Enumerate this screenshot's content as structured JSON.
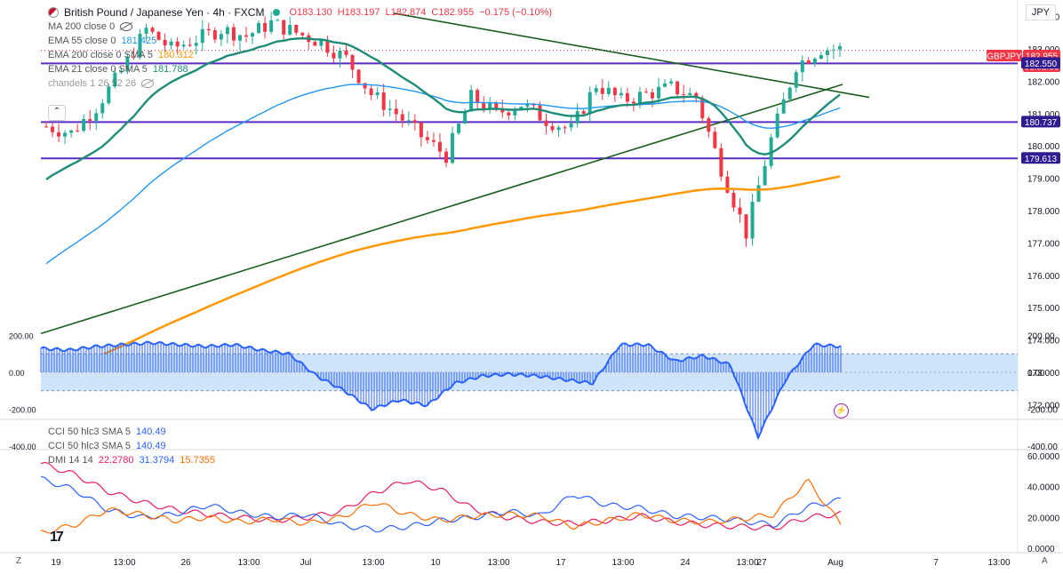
{
  "header": {
    "symbol_title": "British Pound / Japanese Yen · 4h · FXCM",
    "ohlc": {
      "o": "O183.130",
      "h": "H183.197",
      "l": "L182.874",
      "c": "C182.955",
      "chg": "−0.175 (−0.10%)"
    },
    "currency": "JPY"
  },
  "indicators": [
    {
      "name": "MA 200 close 0",
      "value": "",
      "color": "#555555"
    },
    {
      "name": "EMA 55 close 0",
      "value": "181.425",
      "color": "#2196f3"
    },
    {
      "name": "EMA 200 close 0 SMA 5",
      "value": "180.312",
      "color": "#ff9800"
    },
    {
      "name": "EMA 21 close 0 SMA 5",
      "value": "181.788",
      "color": "#1e8c78"
    },
    {
      "name": "chandels 1 26 52 26",
      "value": "",
      "color": "#aaaaaa"
    }
  ],
  "cci_labels": [
    {
      "name": "CCI 50 hlc3 SMA 5",
      "value": "140.49"
    },
    {
      "name": "CCI 50 hlc3 SMA 5",
      "value": "140.49"
    }
  ],
  "dmi_label": {
    "name": "DMI 14 14",
    "v1": "22.2780",
    "v2": "31.3794",
    "v3": "15.7355",
    "c1": "#e91e63",
    "c2": "#2962ff",
    "c3": "#ff6d00"
  },
  "price_tags": [
    {
      "text": "GBPJPY",
      "bg": "#f23645"
    },
    {
      "text": "182.955",
      "bg": "#f23645"
    },
    {
      "text": "01:52:53",
      "bg": "#f23645"
    },
    {
      "text": "182.550",
      "bg": "#311b92"
    },
    {
      "text": "180.737",
      "bg": "#311b92"
    },
    {
      "text": "179.613",
      "bg": "#311b92"
    }
  ],
  "icons": [
    "eye-off-icon",
    "chevron-up-icon",
    "tradingview-logo",
    "flash-icon"
  ],
  "colors": {
    "up": "#22ab94",
    "down": "#f23645",
    "hline": "#5b2bc8",
    "trend": "#1b5e20",
    "cci": "#2962ff"
  },
  "chart_data": [
    {
      "type": "candlestick",
      "title": "British Pound / Japanese Yen · 4h · FXCM",
      "y_ticks": [
        "184.000",
        "183.000",
        "182.000",
        "181.000",
        "180.000",
        "179.000",
        "178.000",
        "177.000",
        "176.000",
        "175.000",
        "174.000",
        "173.000",
        "172.000"
      ],
      "ylim": [
        171.6,
        184.4
      ],
      "x_ticks": [
        "19",
        "13:00",
        "26",
        "13:00",
        "Jul",
        "13:00",
        "10",
        "13:00",
        "17",
        "13:00",
        "24",
        "13:00",
        "27",
        "Aug",
        "7",
        "13:00"
      ],
      "horizontal_levels": [
        182.55,
        180.737,
        179.613
      ],
      "close_approx": [
        180.6,
        180.4,
        181.2,
        182.3,
        183.6,
        183.0,
        183.3,
        183.6,
        183.4,
        183.8,
        183.5,
        183.2,
        182.7,
        181.6,
        181.0,
        180.3,
        179.7,
        181.5,
        181.0,
        181.3,
        180.8,
        180.5,
        181.9,
        181.4,
        181.6,
        181.8,
        181.5,
        179.3,
        177.3,
        180.2,
        182.5,
        183.0
      ]
    },
    {
      "type": "line",
      "title": "CCI 50 hlc3 SMA 5",
      "y_ticks": [
        "200.00",
        "0.00",
        "-200.00",
        "-400.00"
      ],
      "ylim": [
        -400,
        200
      ],
      "band": [
        -100,
        100
      ],
      "values_approx": [
        130,
        120,
        140,
        150,
        160,
        150,
        140,
        150,
        120,
        100,
        -20,
        -100,
        -200,
        -150,
        -180,
        -60,
        -20,
        -10,
        -20,
        -40,
        -60,
        150,
        150,
        60,
        90,
        40,
        -350,
        -40,
        150,
        140
      ]
    },
    {
      "type": "line",
      "title": "DMI 14 14",
      "y_ticks": [
        "60.0000",
        "40.0000",
        "20.0000",
        "0.0000"
      ],
      "ylim": [
        0,
        60
      ],
      "series": [
        {
          "name": "22.2780",
          "values_approx": [
            55,
            48,
            37,
            30,
            25,
            22,
            20,
            18,
            20,
            24,
            36,
            44,
            38,
            25,
            20,
            17,
            16,
            18,
            21,
            17,
            15,
            14,
            13,
            20,
            22.3
          ]
        },
        {
          "name": "31.3794",
          "values_approx": [
            45,
            38,
            25,
            20,
            22,
            28,
            23,
            20,
            22,
            15,
            12,
            14,
            18,
            20,
            24,
            21,
            35,
            28,
            26,
            21,
            20,
            18,
            15,
            27,
            31.4
          ]
        },
        {
          "name": "15.7355",
          "values_approx": [
            10,
            15,
            25,
            22,
            18,
            20,
            17,
            19,
            16,
            20,
            30,
            22,
            18,
            21,
            22,
            21,
            14,
            18,
            22,
            18,
            17,
            19,
            22,
            44,
            15.7
          ]
        }
      ]
    }
  ]
}
